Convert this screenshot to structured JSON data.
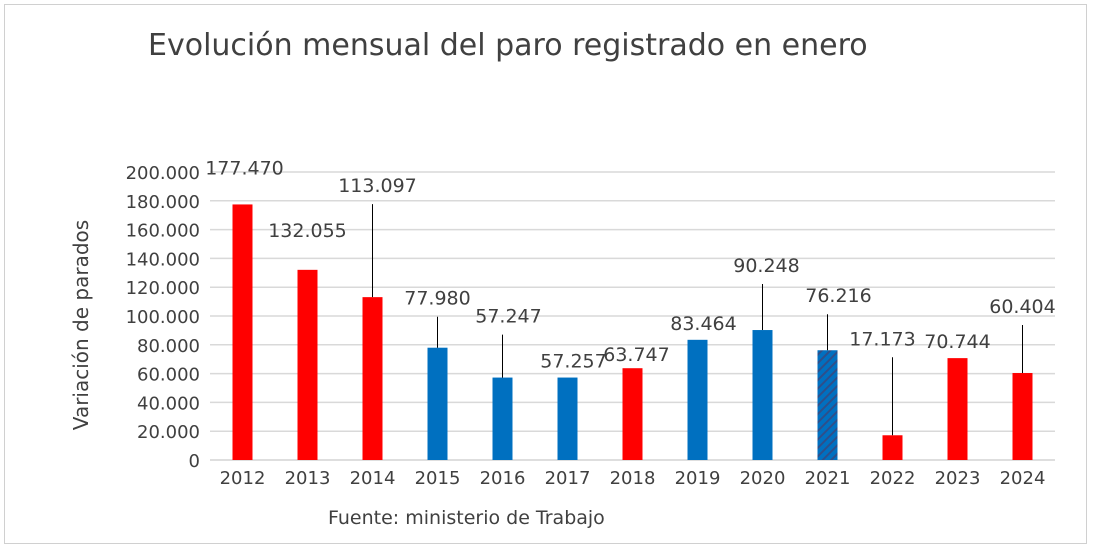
{
  "chart_data": {
    "type": "bar",
    "title": "Evolución mensual del paro registrado en enero",
    "ylabel": "Variación de parados",
    "xlabel": "",
    "source": "Fuente: ministerio de Trabajo",
    "ylim": [
      0,
      200000
    ],
    "y_ticks": [
      "0",
      "20.000",
      "40.000",
      "60.000",
      "80.000",
      "100.000",
      "120.000",
      "140.000",
      "160.000",
      "180.000",
      "200.000"
    ],
    "grid": true,
    "categories": [
      "2012",
      "2013",
      "2014",
      "2015",
      "2016",
      "2017",
      "2018",
      "2019",
      "2020",
      "2021",
      "2022",
      "2023",
      "2024"
    ],
    "values": [
      177470,
      132055,
      113097,
      77980,
      57247,
      57257,
      63747,
      83464,
      90248,
      76216,
      17173,
      70744,
      60404
    ],
    "data_labels": [
      "177.470",
      "132.055",
      "113.097",
      "77.980",
      "57.247",
      "57.257",
      "63.747",
      "83.464",
      "90.248",
      "76.216",
      "17.173",
      "70.744",
      "60.404"
    ],
    "bar_colors": [
      "#ff0000",
      "#ff0000",
      "#ff0000",
      "#0070c0",
      "#0070c0",
      "#0070c0",
      "#ff0000",
      "#0070c0",
      "#0070c0",
      "hatched-blue",
      "#ff0000",
      "#ff0000",
      "#ff0000"
    ],
    "colors": {
      "red": "#ff0000",
      "blue": "#0070c0",
      "hatch": "#2e4f8a"
    }
  }
}
